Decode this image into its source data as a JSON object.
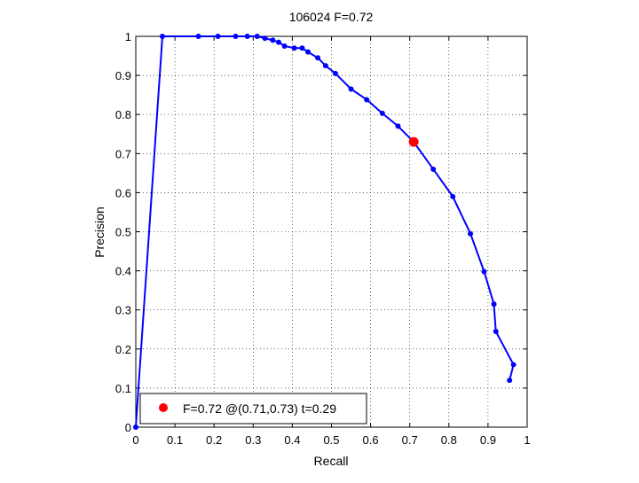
{
  "chart_data": {
    "type": "line",
    "title": "106024 F=0.72",
    "xlabel": "Recall",
    "ylabel": "Precision",
    "xlim": [
      0,
      1
    ],
    "ylim": [
      0,
      1
    ],
    "xticks": [
      0,
      0.1,
      0.2,
      0.3,
      0.4,
      0.5,
      0.6,
      0.7,
      0.8,
      0.9,
      1
    ],
    "yticks": [
      0,
      0.1,
      0.2,
      0.3,
      0.4,
      0.5,
      0.6,
      0.7,
      0.8,
      0.9,
      1
    ],
    "xtick_labels": [
      "0",
      "0.1",
      "0.2",
      "0.3",
      "0.4",
      "0.5",
      "0.6",
      "0.7",
      "0.8",
      "0.9",
      "1"
    ],
    "ytick_labels": [
      "0",
      "0.1",
      "0.2",
      "0.3",
      "0.4",
      "0.5",
      "0.6",
      "0.7",
      "0.8",
      "0.9",
      "1"
    ],
    "grid": true,
    "legend_position": "bottom-left",
    "series": [
      {
        "color": "#0000ff",
        "x": [
          0.0,
          0.068,
          0.16,
          0.21,
          0.255,
          0.285,
          0.31,
          0.33,
          0.35,
          0.365,
          0.38,
          0.405,
          0.425,
          0.44,
          0.465,
          0.485,
          0.51,
          0.55,
          0.59,
          0.63,
          0.67,
          0.71,
          0.76,
          0.81,
          0.855,
          0.89,
          0.915,
          0.92,
          0.965,
          0.955
        ],
        "y": [
          0.0,
          1.0,
          1.0,
          1.0,
          1.0,
          1.0,
          1.0,
          0.995,
          0.99,
          0.985,
          0.975,
          0.97,
          0.97,
          0.96,
          0.945,
          0.925,
          0.905,
          0.865,
          0.838,
          0.803,
          0.77,
          0.73,
          0.66,
          0.59,
          0.495,
          0.398,
          0.315,
          0.245,
          0.16,
          0.12
        ]
      }
    ],
    "marker": {
      "x": 0.71,
      "y": 0.73,
      "color": "#ff0000"
    },
    "legend": {
      "label": "F=0.72 @(0.71,0.73) t=0.29"
    }
  }
}
